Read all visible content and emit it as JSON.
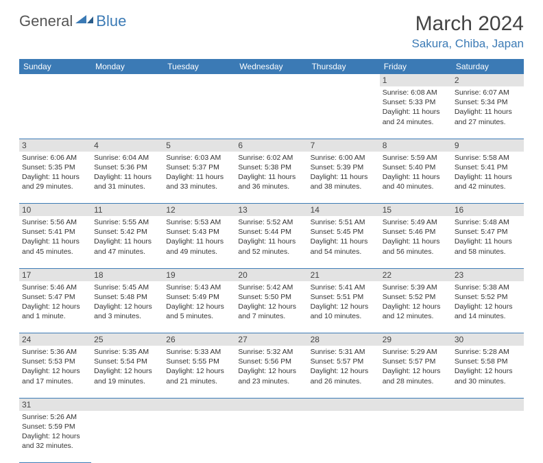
{
  "logo": {
    "general": "General",
    "blue": "Blue"
  },
  "title": "March 2024",
  "location": "Sakura, Chiba, Japan",
  "colors": {
    "accent": "#3b7ab5",
    "headerText": "#ffffff",
    "daynumBg": "#e3e3e3",
    "bodyText": "#333333",
    "background": "#ffffff"
  },
  "dayNames": [
    "Sunday",
    "Monday",
    "Tuesday",
    "Wednesday",
    "Thursday",
    "Friday",
    "Saturday"
  ],
  "startOffset": 5,
  "days": [
    {
      "n": 1,
      "sunrise": "6:08 AM",
      "sunset": "5:33 PM",
      "daylight": "11 hours and 24 minutes."
    },
    {
      "n": 2,
      "sunrise": "6:07 AM",
      "sunset": "5:34 PM",
      "daylight": "11 hours and 27 minutes."
    },
    {
      "n": 3,
      "sunrise": "6:06 AM",
      "sunset": "5:35 PM",
      "daylight": "11 hours and 29 minutes."
    },
    {
      "n": 4,
      "sunrise": "6:04 AM",
      "sunset": "5:36 PM",
      "daylight": "11 hours and 31 minutes."
    },
    {
      "n": 5,
      "sunrise": "6:03 AM",
      "sunset": "5:37 PM",
      "daylight": "11 hours and 33 minutes."
    },
    {
      "n": 6,
      "sunrise": "6:02 AM",
      "sunset": "5:38 PM",
      "daylight": "11 hours and 36 minutes."
    },
    {
      "n": 7,
      "sunrise": "6:00 AM",
      "sunset": "5:39 PM",
      "daylight": "11 hours and 38 minutes."
    },
    {
      "n": 8,
      "sunrise": "5:59 AM",
      "sunset": "5:40 PM",
      "daylight": "11 hours and 40 minutes."
    },
    {
      "n": 9,
      "sunrise": "5:58 AM",
      "sunset": "5:41 PM",
      "daylight": "11 hours and 42 minutes."
    },
    {
      "n": 10,
      "sunrise": "5:56 AM",
      "sunset": "5:41 PM",
      "daylight": "11 hours and 45 minutes."
    },
    {
      "n": 11,
      "sunrise": "5:55 AM",
      "sunset": "5:42 PM",
      "daylight": "11 hours and 47 minutes."
    },
    {
      "n": 12,
      "sunrise": "5:53 AM",
      "sunset": "5:43 PM",
      "daylight": "11 hours and 49 minutes."
    },
    {
      "n": 13,
      "sunrise": "5:52 AM",
      "sunset": "5:44 PM",
      "daylight": "11 hours and 52 minutes."
    },
    {
      "n": 14,
      "sunrise": "5:51 AM",
      "sunset": "5:45 PM",
      "daylight": "11 hours and 54 minutes."
    },
    {
      "n": 15,
      "sunrise": "5:49 AM",
      "sunset": "5:46 PM",
      "daylight": "11 hours and 56 minutes."
    },
    {
      "n": 16,
      "sunrise": "5:48 AM",
      "sunset": "5:47 PM",
      "daylight": "11 hours and 58 minutes."
    },
    {
      "n": 17,
      "sunrise": "5:46 AM",
      "sunset": "5:47 PM",
      "daylight": "12 hours and 1 minute."
    },
    {
      "n": 18,
      "sunrise": "5:45 AM",
      "sunset": "5:48 PM",
      "daylight": "12 hours and 3 minutes."
    },
    {
      "n": 19,
      "sunrise": "5:43 AM",
      "sunset": "5:49 PM",
      "daylight": "12 hours and 5 minutes."
    },
    {
      "n": 20,
      "sunrise": "5:42 AM",
      "sunset": "5:50 PM",
      "daylight": "12 hours and 7 minutes."
    },
    {
      "n": 21,
      "sunrise": "5:41 AM",
      "sunset": "5:51 PM",
      "daylight": "12 hours and 10 minutes."
    },
    {
      "n": 22,
      "sunrise": "5:39 AM",
      "sunset": "5:52 PM",
      "daylight": "12 hours and 12 minutes."
    },
    {
      "n": 23,
      "sunrise": "5:38 AM",
      "sunset": "5:52 PM",
      "daylight": "12 hours and 14 minutes."
    },
    {
      "n": 24,
      "sunrise": "5:36 AM",
      "sunset": "5:53 PM",
      "daylight": "12 hours and 17 minutes."
    },
    {
      "n": 25,
      "sunrise": "5:35 AM",
      "sunset": "5:54 PM",
      "daylight": "12 hours and 19 minutes."
    },
    {
      "n": 26,
      "sunrise": "5:33 AM",
      "sunset": "5:55 PM",
      "daylight": "12 hours and 21 minutes."
    },
    {
      "n": 27,
      "sunrise": "5:32 AM",
      "sunset": "5:56 PM",
      "daylight": "12 hours and 23 minutes."
    },
    {
      "n": 28,
      "sunrise": "5:31 AM",
      "sunset": "5:57 PM",
      "daylight": "12 hours and 26 minutes."
    },
    {
      "n": 29,
      "sunrise": "5:29 AM",
      "sunset": "5:57 PM",
      "daylight": "12 hours and 28 minutes."
    },
    {
      "n": 30,
      "sunrise": "5:28 AM",
      "sunset": "5:58 PM",
      "daylight": "12 hours and 30 minutes."
    },
    {
      "n": 31,
      "sunrise": "5:26 AM",
      "sunset": "5:59 PM",
      "daylight": "12 hours and 32 minutes."
    }
  ],
  "labels": {
    "sunrise": "Sunrise:",
    "sunset": "Sunset:",
    "daylight": "Daylight:"
  }
}
